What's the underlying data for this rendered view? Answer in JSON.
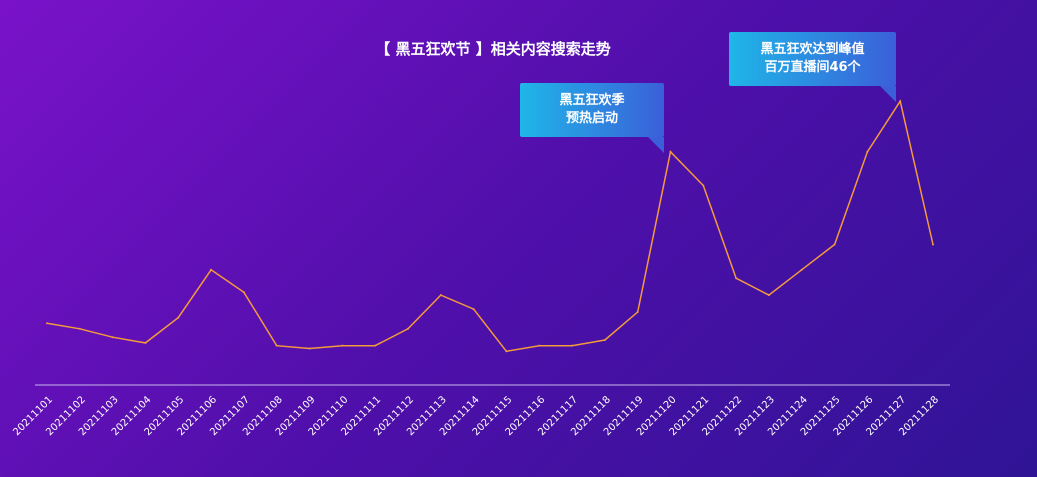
{
  "chart_data": {
    "type": "line",
    "title": "【 黑五狂欢节 】相关内容搜索走势",
    "xlabel": "",
    "ylabel": "",
    "grid": false,
    "x": [
      "20211101",
      "20211102",
      "20211103",
      "20211104",
      "20211105",
      "20211106",
      "20211107",
      "20211108",
      "20211109",
      "20211110",
      "20211111",
      "20211112",
      "20211113",
      "20211114",
      "20211115",
      "20211116",
      "20211117",
      "20211118",
      "20211119",
      "20211120",
      "20211121",
      "20211122",
      "20211123",
      "20211124",
      "20211125",
      "20211126",
      "20211127",
      "20211128"
    ],
    "series": [
      {
        "color": "#f39a3c",
        "values": [
          22,
          20,
          17,
          15,
          24,
          41,
          33,
          14,
          13,
          14,
          14,
          20,
          32,
          27,
          12,
          14,
          14,
          16,
          26,
          83,
          71,
          38,
          32,
          41,
          50,
          83,
          101,
          50
        ]
      }
    ],
    "ylim": [
      0,
      105
    ],
    "annotations": [
      {
        "lines": [
          "黑五狂欢季",
          "预热启动"
        ],
        "x": "20211119"
      },
      {
        "lines": [
          "黑五狂欢达到峰值",
          "百万直播间46个"
        ],
        "x": "20211126"
      }
    ]
  }
}
